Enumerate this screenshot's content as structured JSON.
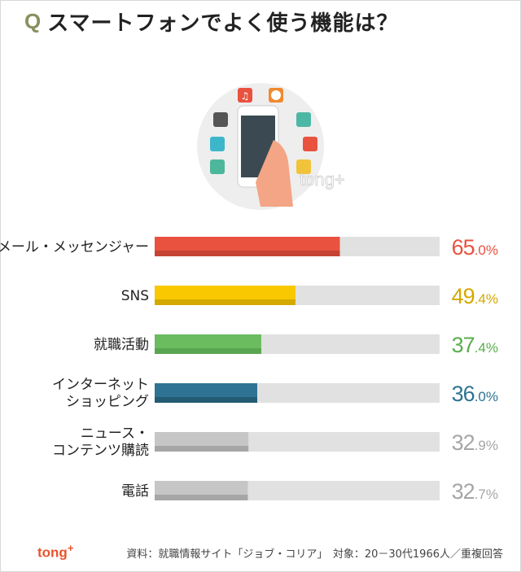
{
  "title": {
    "q": "Q",
    "text": "スマートフォンでよく使う機能は？"
  },
  "watermark": "tong+",
  "footer": {
    "logo": "tong",
    "logo_plus": "+",
    "source": "資料：就職情報サイト「ジョブ・コリア」　対象：20－30代1966人／重複回答"
  },
  "colors": {
    "track": "#e1e1e1",
    "title_q": "#8a8f5f",
    "logo": "#e8542c"
  },
  "chart_data": {
    "type": "bar",
    "orientation": "horizontal",
    "xlim": [
      0,
      100
    ],
    "unit": "%",
    "categories": [
      [
        "メール・メッセンジャー"
      ],
      [
        "SNS"
      ],
      [
        "就職活動"
      ],
      [
        "インターネット",
        "ショッピング"
      ],
      [
        "ニュース・",
        "コンテンツ購読"
      ],
      [
        "電話"
      ]
    ],
    "values": [
      65.0,
      49.4,
      37.4,
      36.0,
      32.9,
      32.7
    ],
    "labels": [
      {
        "int": "65",
        "dec": ".0%"
      },
      {
        "int": "49",
        "dec": ".4%"
      },
      {
        "int": "37",
        "dec": ".4%"
      },
      {
        "int": "36",
        "dec": ".0%"
      },
      {
        "int": "32",
        "dec": ".9%"
      },
      {
        "int": "32",
        "dec": ".7%"
      }
    ],
    "colors": [
      "#e8523f",
      "#f9c800",
      "#6bbb5f",
      "#2f7394",
      "#c6c6c6",
      "#c6c6c6"
    ],
    "shade_colors": [
      "#c54332",
      "#d4aa00",
      "#5aa54f",
      "#235a74",
      "#a6a6a6",
      "#a6a6a6"
    ],
    "label_colors": [
      "#e8523f",
      "#d4a800",
      "#5aae4e",
      "#2f7394",
      "#a6a6a6",
      "#a6a6a6"
    ]
  }
}
